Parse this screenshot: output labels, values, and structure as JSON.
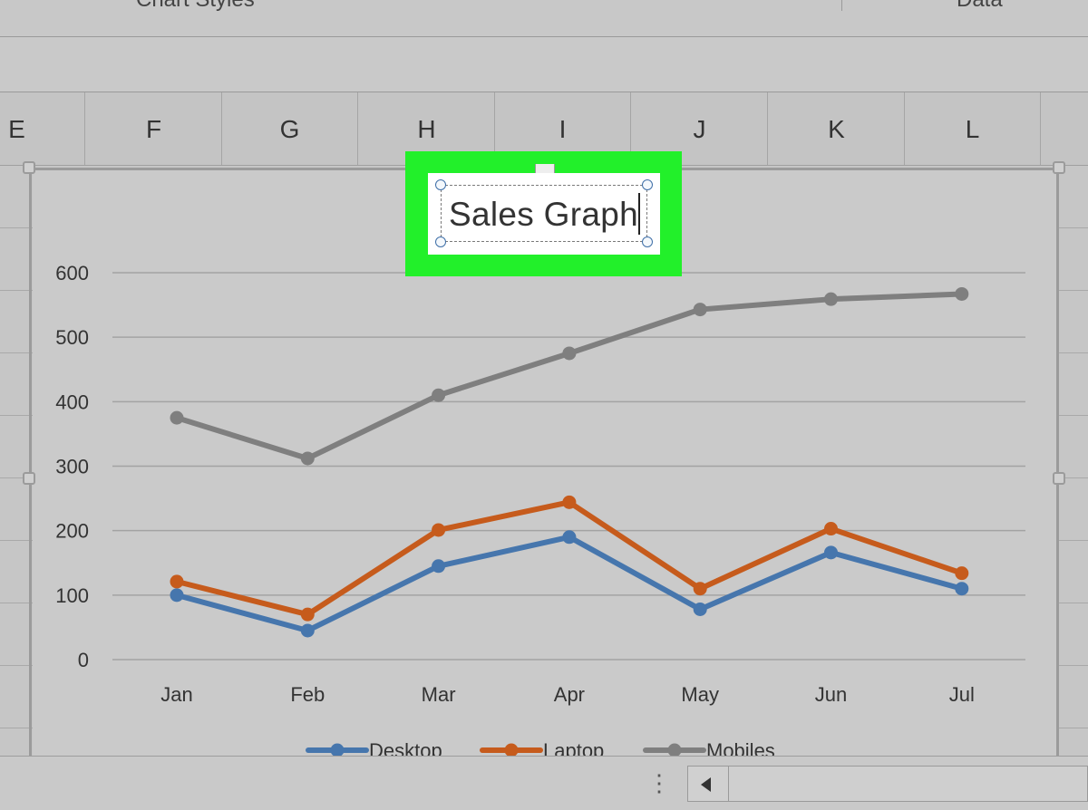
{
  "ribbon": {
    "group_chart_styles": "Chart Styles",
    "group_data": "Data"
  },
  "columns": [
    "E",
    "F",
    "G",
    "H",
    "I",
    "J",
    "K",
    "L"
  ],
  "chart_data": {
    "type": "line",
    "title": "Sales Graph",
    "categories": [
      "Jan",
      "Feb",
      "Mar",
      "Apr",
      "May",
      "Jun",
      "Jul"
    ],
    "series": [
      {
        "name": "Desktop",
        "color": "#4676ad",
        "values": [
          100,
          45,
          145,
          190,
          78,
          166,
          110
        ]
      },
      {
        "name": "Laptop",
        "color": "#c65b1c",
        "values": [
          121,
          70,
          201,
          244,
          110,
          203,
          134
        ]
      },
      {
        "name": "Mobiles",
        "color": "#7f7f7f",
        "values": [
          375,
          312,
          410,
          475,
          543,
          559,
          567
        ]
      }
    ],
    "ylim": [
      0,
      600
    ],
    "yticks": [
      0,
      100,
      200,
      300,
      400,
      500,
      600
    ],
    "grid": true,
    "legend": "bottom"
  }
}
